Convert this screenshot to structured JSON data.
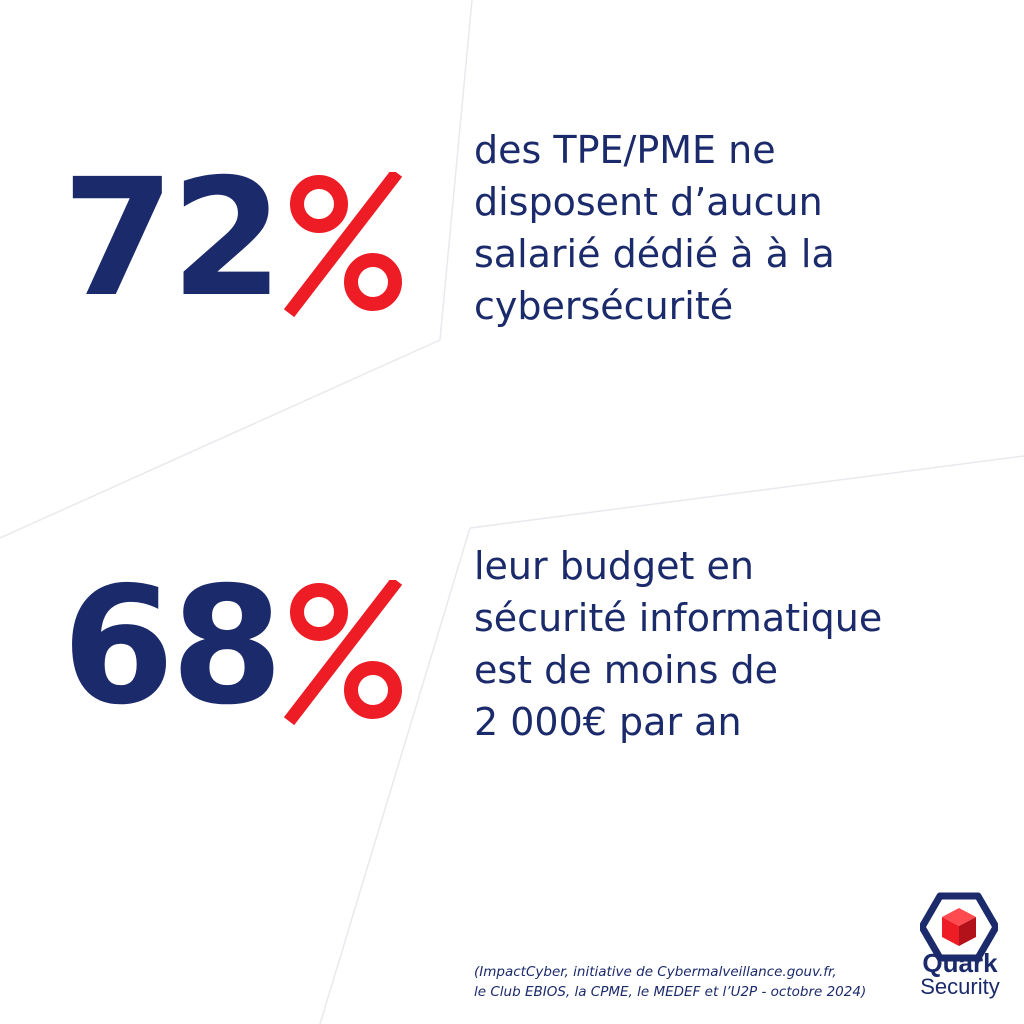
{
  "colors": {
    "navy": "#1b2a6b",
    "accent_red": "#ee1c25",
    "background": "#ffffff"
  },
  "stats": [
    {
      "number": "72",
      "symbol": "%",
      "lines": [
        "des TPE/PME ne",
        "disposent d’aucun",
        "salarié dédié à à la",
        "cybersécurité"
      ]
    },
    {
      "number": "68",
      "symbol": "%",
      "lines": [
        "leur budget en",
        "sécurité informatique",
        "est de moins de",
        "2 000€ par an"
      ]
    }
  ],
  "source": {
    "lines": [
      "(ImpactCyber, initiative de Cybermalveillance.gouv.fr,",
      "le Club EBIOS, la CPME, le MEDEF et l’U2P - octobre 2024)"
    ]
  },
  "logo": {
    "word1": "Quark",
    "word2": "Security",
    "icon": "hexagon-cube-logo-icon"
  }
}
